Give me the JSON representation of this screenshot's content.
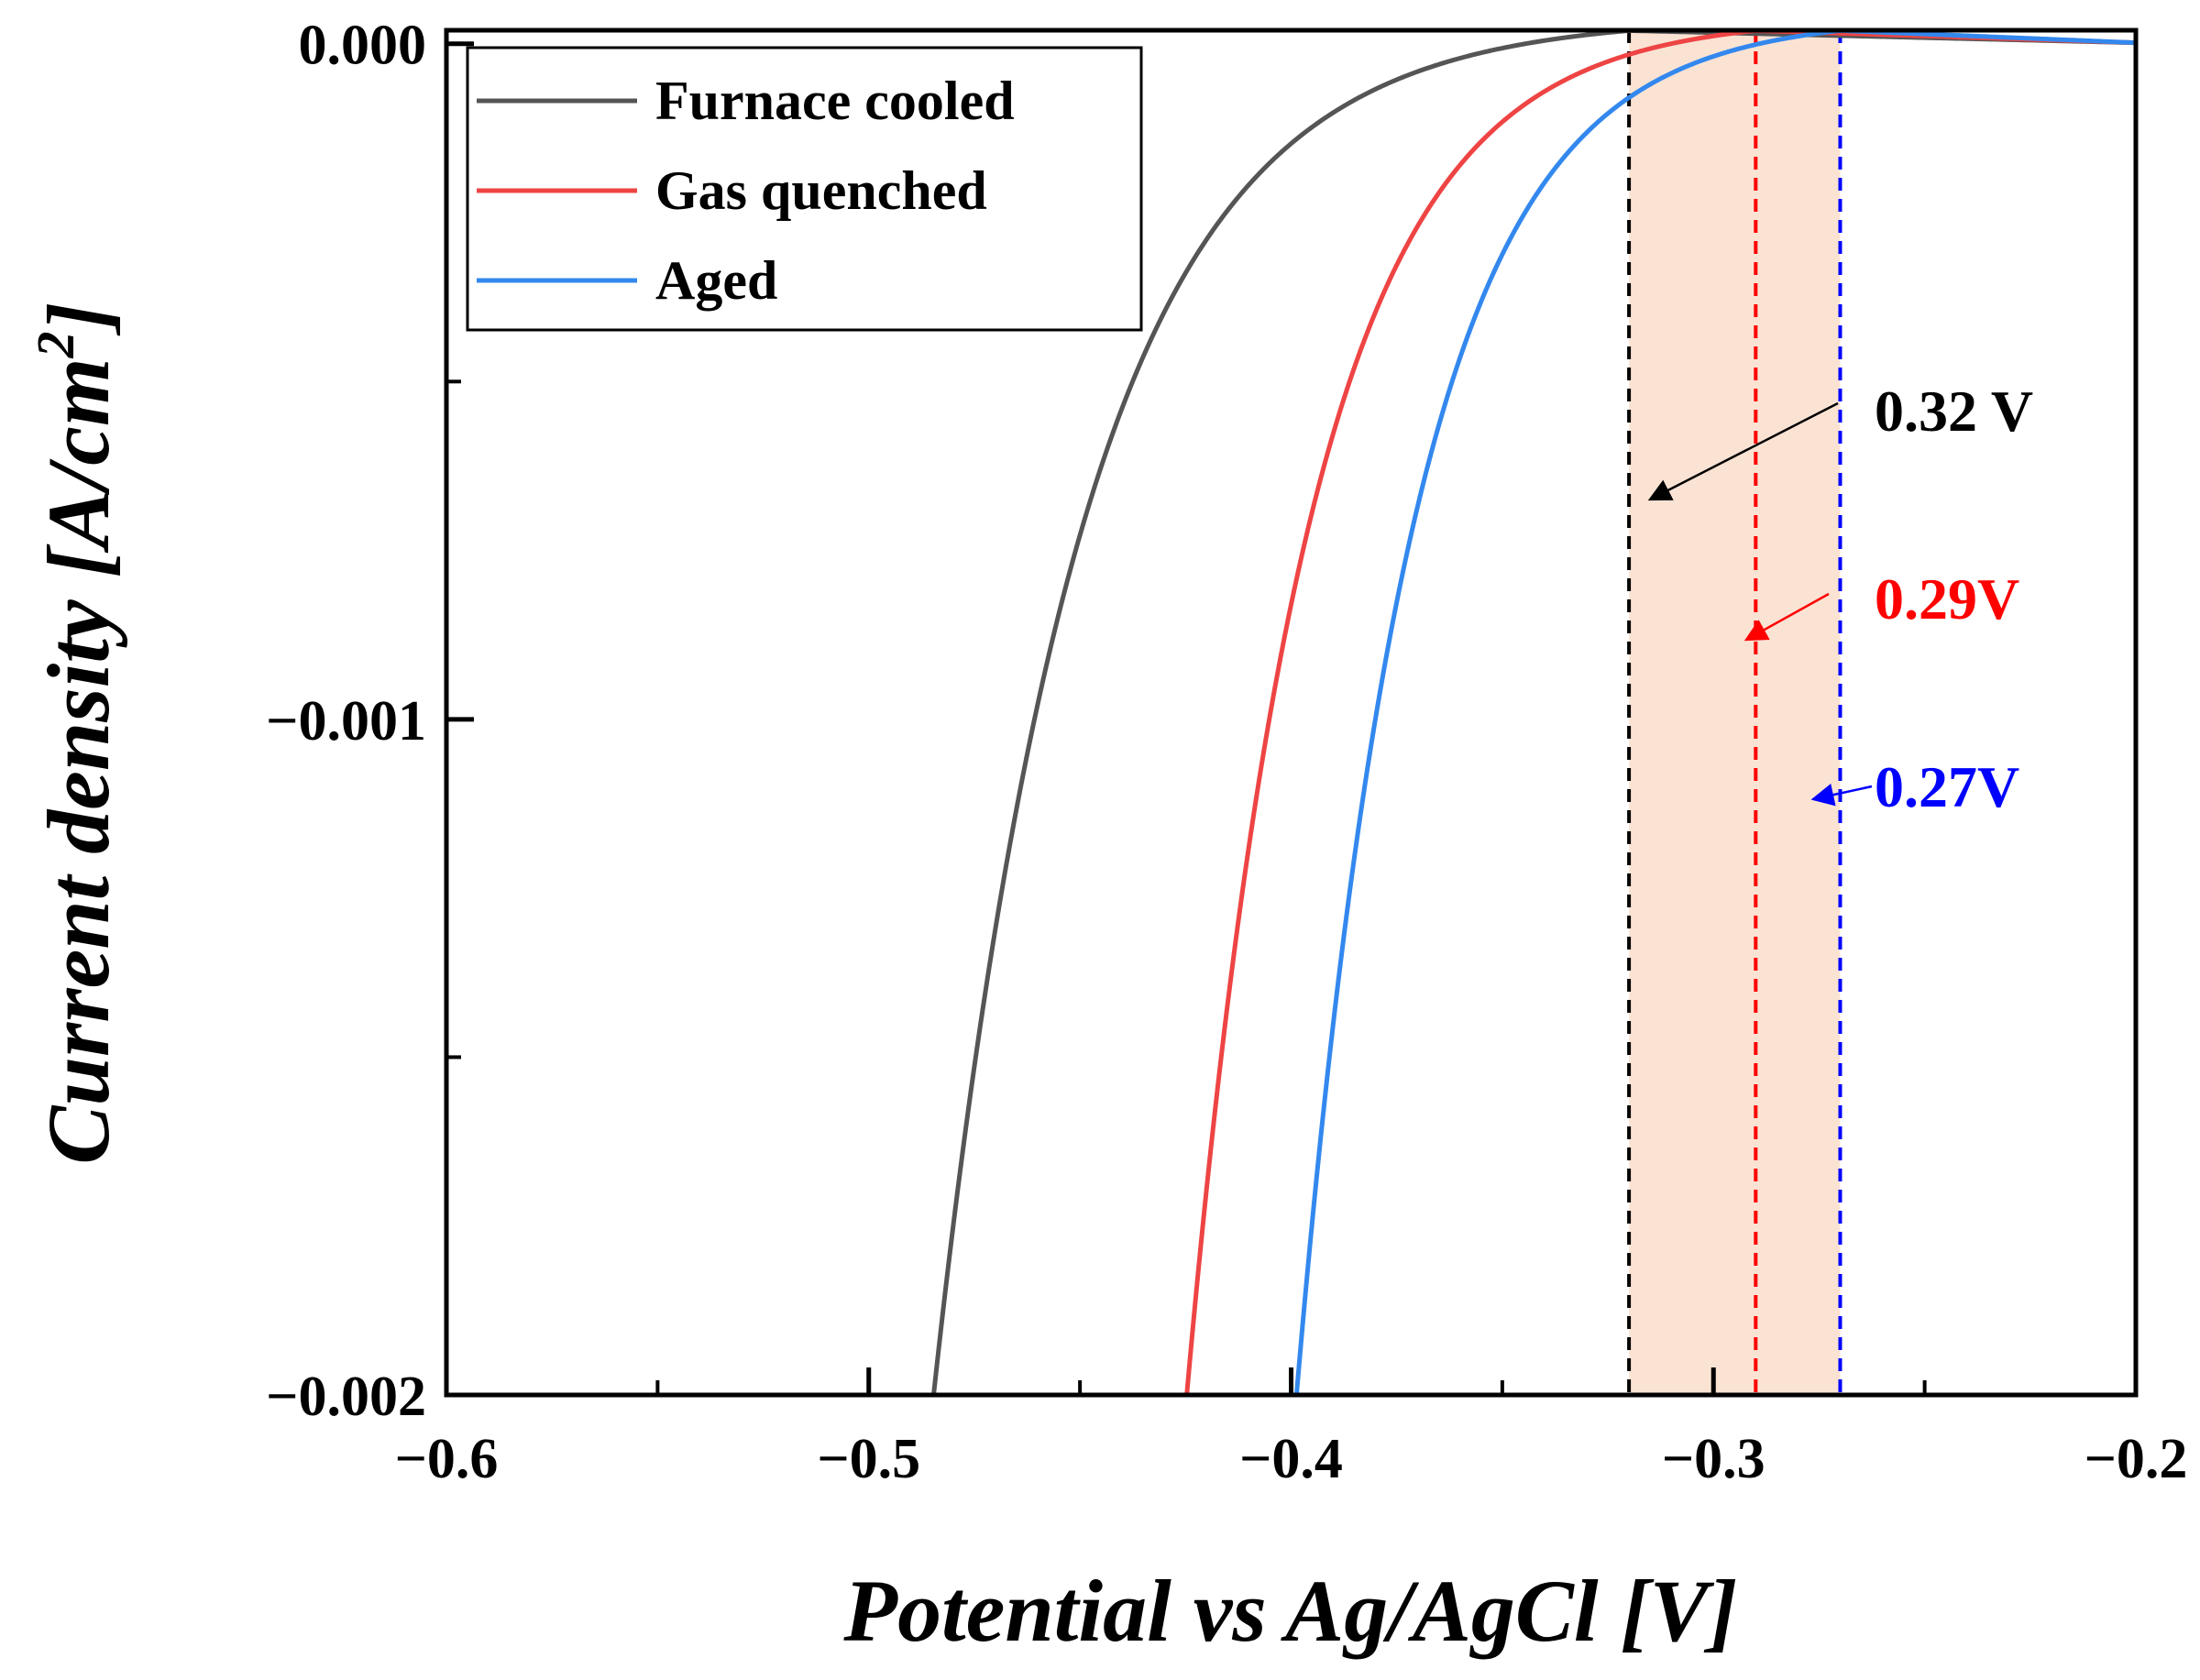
{
  "chart_data": {
    "type": "line",
    "xlabel": "Potential vs Ag/AgCl [V]",
    "ylabel_main": "Current density [A/cm",
    "ylabel_sup": "2",
    "ylabel_close": "]",
    "xlim": [
      -0.6,
      -0.2
    ],
    "ylim": [
      -0.002,
      2e-05
    ],
    "x_ticks": [
      -0.6,
      -0.5,
      -0.4,
      -0.3,
      -0.2
    ],
    "x_tick_labels": [
      "−0.6",
      "−0.5",
      "−0.4",
      "−0.3",
      "−0.2"
    ],
    "x_minor_ticks": [
      -0.55,
      -0.45,
      -0.35,
      -0.25
    ],
    "y_ticks": [
      0.0,
      -0.001,
      -0.002
    ],
    "y_tick_labels": [
      "0.000",
      "−0.001",
      "−0.002"
    ],
    "y_minor_ticks": [
      -0.0005,
      -0.0015
    ],
    "grid": false,
    "legend_position": "top-left",
    "series": [
      {
        "name": "Furnace cooled",
        "color": "#555555",
        "onset": -0.485,
        "peak_x": -0.32
      },
      {
        "name": "Gas quenched",
        "color": "#ee4444",
        "onset": -0.425,
        "peak_x": -0.29
      },
      {
        "name": "Aged",
        "color": "#3388ee",
        "onset": -0.399,
        "peak_x": -0.27
      }
    ],
    "shaded_region": {
      "x_start": -0.32,
      "x_end": -0.27,
      "color": "#fbe3d4"
    },
    "reference_lines": [
      {
        "x": -0.32,
        "color": "#000000"
      },
      {
        "x": -0.29,
        "color": "#ff0000"
      },
      {
        "x": -0.27,
        "color": "#0000ff"
      }
    ],
    "annotations": [
      {
        "text": "0.32 V",
        "color": "#000000"
      },
      {
        "text": "0.29V",
        "color": "#ff0000"
      },
      {
        "text": "0.27V",
        "color": "#0000ff"
      }
    ]
  }
}
